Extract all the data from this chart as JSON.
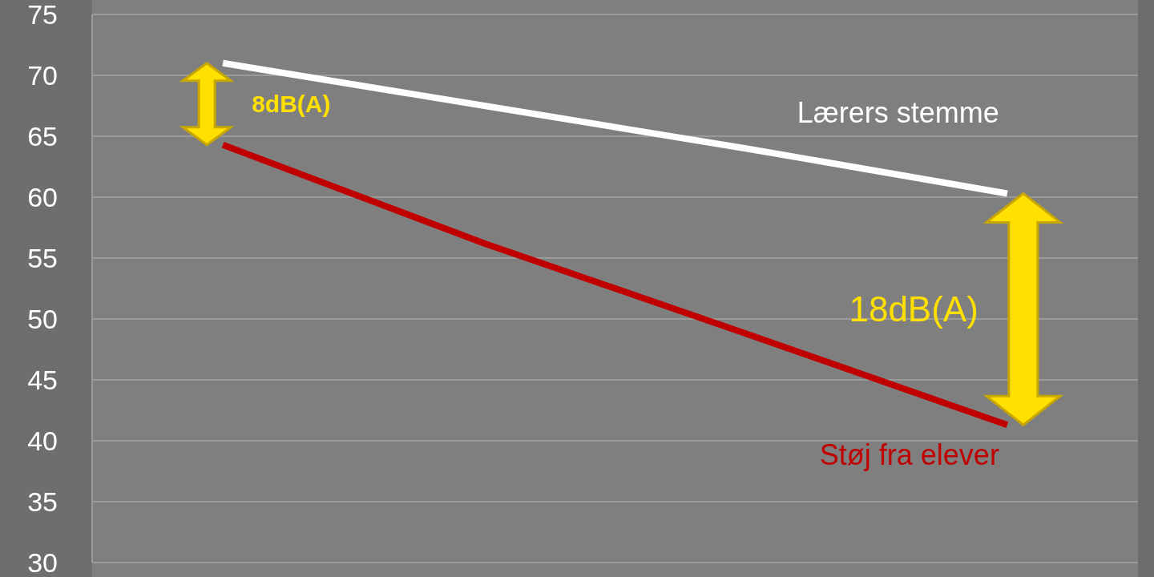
{
  "chart_data": {
    "type": "line",
    "categories": [
      null,
      null,
      null,
      null
    ],
    "series": [
      {
        "name": "Lærers stemme",
        "color": "#ffffff",
        "values": [
          71,
          67.5,
          64.0,
          60.3
        ]
      },
      {
        "name": "Støj fra elever",
        "color": "#c00000",
        "values": [
          64.3,
          56.2,
          48.8,
          41.3
        ]
      }
    ],
    "ylim": [
      30,
      75
    ],
    "yticks": [
      30,
      35,
      40,
      45,
      50,
      55,
      60,
      65,
      70,
      75
    ],
    "grid": "y",
    "marker": "none",
    "line_style": "solid",
    "annotations": [
      "8dB(A)",
      "18dB(A)"
    ]
  }
}
